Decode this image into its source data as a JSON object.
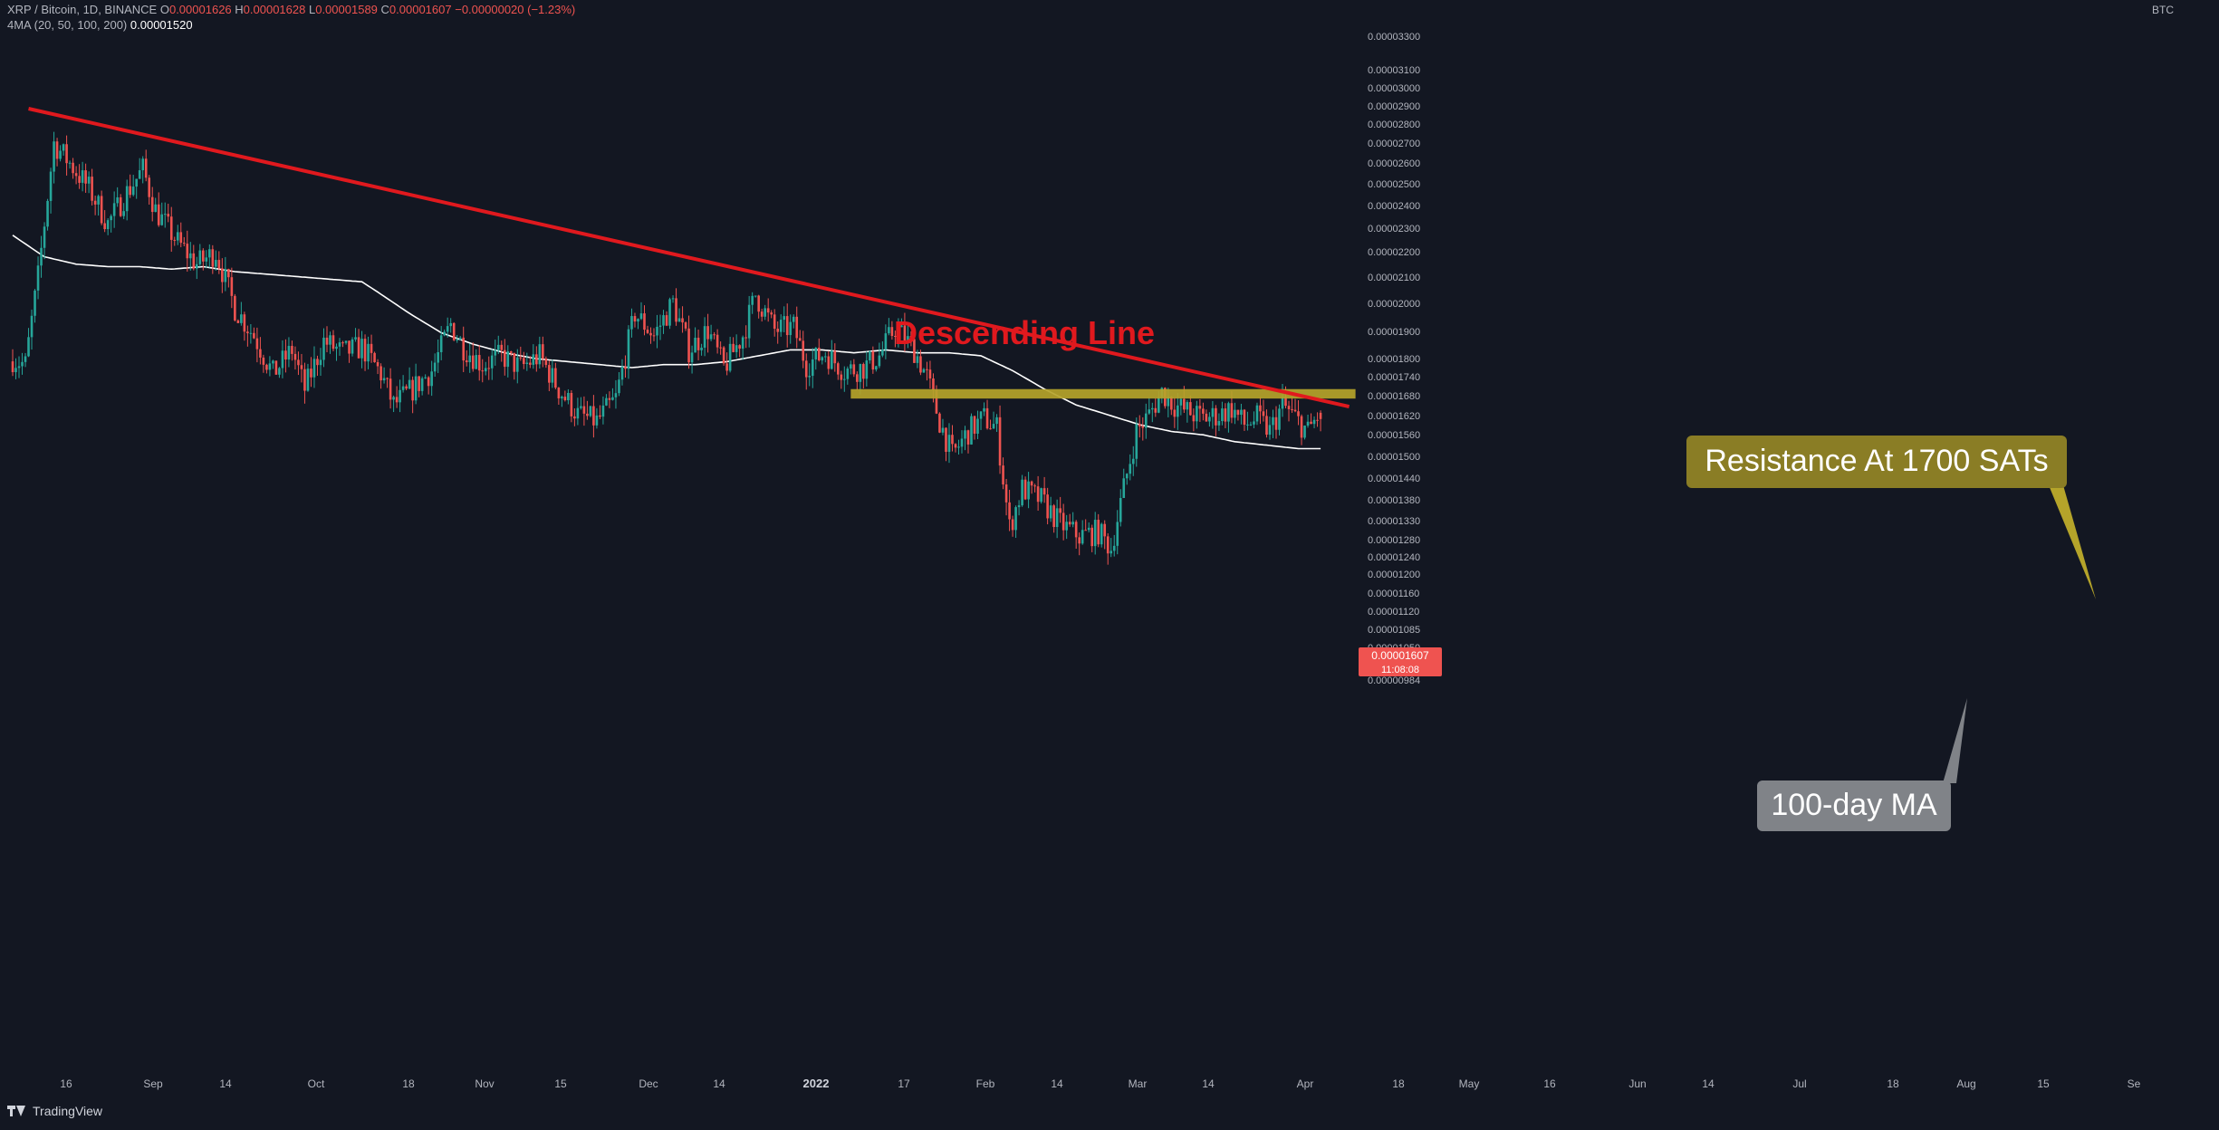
{
  "header": {
    "symbol_line": "XRP / Bitcoin, 1D, BINANCE",
    "ohlc": {
      "o_label": "O",
      "o": "0.00001626",
      "h_label": "H",
      "h": "0.00001628",
      "l_label": "L",
      "l": "0.00001589",
      "c_label": "C",
      "c": "0.00001607",
      "change": "−0.00000020 (−1.23%)"
    },
    "ma_label": "4MA (20, 50, 100, 200)",
    "ma_value": "0.00001520"
  },
  "currency": "BTC",
  "footer": {
    "brand": "TradingView"
  },
  "colors": {
    "bg": "#131722",
    "up": "#26a69a",
    "down": "#ef5350",
    "trendline": "#e0191e",
    "resistance": "#b5a42a",
    "ma": "#ffffff",
    "text": "#b2b5be"
  },
  "chart_data": {
    "type": "candlestick",
    "title": "",
    "xlabel": "",
    "ylabel": "",
    "y_scale": "log",
    "ylim": [
      9.7e-06,
      3.36e-05
    ],
    "x_ticks": [
      "16",
      "Sep",
      "14",
      "Oct",
      "18",
      "Nov",
      "15",
      "Dec",
      "14",
      "2022",
      "17",
      "Feb",
      "14",
      "Mar",
      "14",
      "Apr",
      "18",
      "May",
      "16",
      "Jun",
      "14",
      "Jul",
      "18",
      "Aug",
      "15",
      "Se"
    ],
    "x_tick_bold": "2022",
    "y_ticks": [
      "0.00003300",
      "0.00003100",
      "0.00003000",
      "0.00002900",
      "0.00002800",
      "0.00002700",
      "0.00002600",
      "0.00002500",
      "0.00002400",
      "0.00002300",
      "0.00002200",
      "0.00002100",
      "0.00002000",
      "0.00001900",
      "0.00001800",
      "0.00001740",
      "0.00001680",
      "0.00001620",
      "0.00001560",
      "0.00001500",
      "0.00001440",
      "0.00001380",
      "0.00001330",
      "0.00001280",
      "0.00001240",
      "0.00001200",
      "0.00001160",
      "0.00001120",
      "0.00001085",
      "0.00001050",
      "0.00001016",
      "0.00000984"
    ],
    "series": [
      {
        "name": "XRP / Bitcoin",
        "kind": "candles",
        "anchors": [
          [
            0,
            1.8e-05
          ],
          [
            4,
            1.78e-05
          ],
          [
            8,
            2.1e-05
          ],
          [
            13,
            2.7e-05
          ],
          [
            17,
            2.62e-05
          ],
          [
            24,
            2.48e-05
          ],
          [
            30,
            2.32e-05
          ],
          [
            36,
            2.46e-05
          ],
          [
            41,
            2.57e-05
          ],
          [
            45,
            2.38e-05
          ],
          [
            52,
            2.24e-05
          ],
          [
            58,
            2.15e-05
          ],
          [
            64,
            2.2e-05
          ],
          [
            70,
            1.98e-05
          ],
          [
            76,
            1.88e-05
          ],
          [
            82,
            1.75e-05
          ],
          [
            88,
            1.83e-05
          ],
          [
            92,
            1.7e-05
          ],
          [
            98,
            1.86e-05
          ],
          [
            104,
            1.82e-05
          ],
          [
            110,
            1.84e-05
          ],
          [
            116,
            1.75e-05
          ],
          [
            120,
            1.65e-05
          ],
          [
            126,
            1.7e-05
          ],
          [
            132,
            1.76e-05
          ],
          [
            138,
            1.92e-05
          ],
          [
            142,
            1.84e-05
          ],
          [
            148,
            1.78e-05
          ],
          [
            154,
            1.81e-05
          ],
          [
            160,
            1.77e-05
          ],
          [
            166,
            1.81e-05
          ],
          [
            172,
            1.7e-05
          ],
          [
            178,
            1.62e-05
          ],
          [
            184,
            1.6e-05
          ],
          [
            190,
            1.67e-05
          ],
          [
            196,
            1.96e-05
          ],
          [
            202,
            1.88e-05
          ],
          [
            208,
            2e-05
          ],
          [
            213,
            1.83e-05
          ],
          [
            219,
            1.9e-05
          ],
          [
            224,
            1.77e-05
          ],
          [
            230,
            1.88e-05
          ],
          [
            234,
            2.03e-05
          ],
          [
            240,
            1.9e-05
          ],
          [
            246,
            1.91e-05
          ],
          [
            250,
            1.78e-05
          ],
          [
            256,
            1.82e-05
          ],
          [
            262,
            1.76e-05
          ],
          [
            268,
            1.77e-05
          ],
          [
            273,
            1.81e-05
          ],
          [
            278,
            1.91e-05
          ],
          [
            284,
            1.83e-05
          ],
          [
            288,
            1.74e-05
          ],
          [
            292,
            1.6e-05
          ],
          [
            296,
            1.5e-05
          ],
          [
            301,
            1.57e-05
          ],
          [
            306,
            1.61e-05
          ],
          [
            310,
            1.58e-05
          ],
          [
            314,
            1.31e-05
          ],
          [
            318,
            1.41e-05
          ],
          [
            324,
            1.38e-05
          ],
          [
            330,
            1.32e-05
          ],
          [
            336,
            1.29e-05
          ],
          [
            342,
            1.3e-05
          ],
          [
            346,
            1.26e-05
          ],
          [
            350,
            1.41e-05
          ],
          [
            354,
            1.57e-05
          ],
          [
            358,
            1.62e-05
          ],
          [
            362,
            1.69e-05
          ],
          [
            366,
            1.65e-05
          ],
          [
            370,
            1.63e-05
          ],
          [
            375,
            1.61e-05
          ],
          [
            380,
            1.62e-05
          ],
          [
            384,
            1.64e-05
          ],
          [
            388,
            1.59e-05
          ],
          [
            392,
            1.61e-05
          ],
          [
            396,
            1.57e-05
          ],
          [
            400,
            1.65e-05
          ],
          [
            404,
            1.61e-05
          ],
          [
            408,
            1.57e-05
          ],
          [
            412,
            1.63e-05
          ]
        ]
      },
      {
        "name": "100-day MA",
        "kind": "line",
        "anchors": [
          [
            0,
            2.27e-05
          ],
          [
            10,
            2.18e-05
          ],
          [
            20,
            2.15e-05
          ],
          [
            30,
            2.14e-05
          ],
          [
            40,
            2.14e-05
          ],
          [
            50,
            2.13e-05
          ],
          [
            60,
            2.14e-05
          ],
          [
            70,
            2.12e-05
          ],
          [
            80,
            2.11e-05
          ],
          [
            90,
            2.1e-05
          ],
          [
            100,
            2.09e-05
          ],
          [
            110,
            2.08e-05
          ],
          [
            115,
            2.04e-05
          ],
          [
            125,
            1.96e-05
          ],
          [
            135,
            1.89e-05
          ],
          [
            145,
            1.85e-05
          ],
          [
            155,
            1.82e-05
          ],
          [
            165,
            1.8e-05
          ],
          [
            175,
            1.79e-05
          ],
          [
            185,
            1.78e-05
          ],
          [
            195,
            1.77e-05
          ],
          [
            205,
            1.78e-05
          ],
          [
            215,
            1.78e-05
          ],
          [
            225,
            1.79e-05
          ],
          [
            235,
            1.81e-05
          ],
          [
            245,
            1.83e-05
          ],
          [
            255,
            1.83e-05
          ],
          [
            265,
            1.82e-05
          ],
          [
            275,
            1.83e-05
          ],
          [
            285,
            1.82e-05
          ],
          [
            295,
            1.82e-05
          ],
          [
            305,
            1.81e-05
          ],
          [
            315,
            1.76e-05
          ],
          [
            325,
            1.7e-05
          ],
          [
            335,
            1.65e-05
          ],
          [
            345,
            1.62e-05
          ],
          [
            355,
            1.59e-05
          ],
          [
            365,
            1.57e-05
          ],
          [
            375,
            1.56e-05
          ],
          [
            385,
            1.54e-05
          ],
          [
            395,
            1.53e-05
          ],
          [
            405,
            1.52e-05
          ],
          [
            412,
            1.52e-05
          ]
        ]
      }
    ],
    "trendline": {
      "name": "Descending Line",
      "from": [
        5,
        2.88e-05
      ],
      "to": [
        421,
        1.645e-05
      ]
    },
    "resistance_zone": {
      "name": "Resistance At 1700 SATs",
      "from_index": 264,
      "to_index": 423,
      "y_low": 1.67e-05,
      "y_high": 1.7e-05
    },
    "current_price": {
      "value": "0.00001607",
      "countdown": "11:08:08"
    },
    "annotations": [
      {
        "id": "descending-line",
        "text": "Descending Line"
      },
      {
        "id": "resistance",
        "text": "Resistance At 1700 SATs"
      },
      {
        "id": "ma",
        "text": "100-day MA"
      }
    ],
    "grid": false,
    "legend": "none"
  }
}
